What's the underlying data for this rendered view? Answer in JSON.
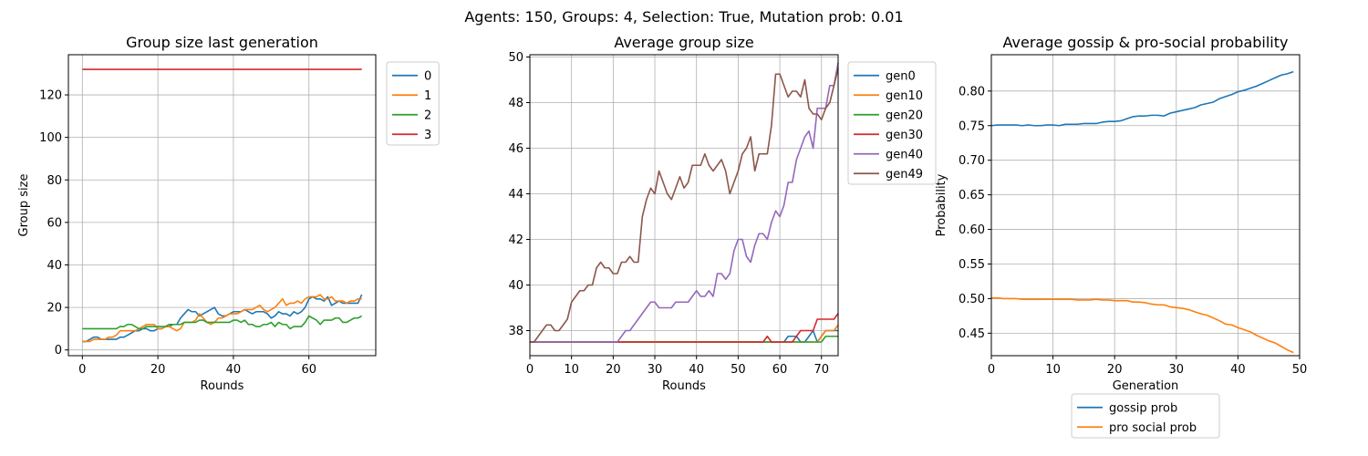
{
  "suptitle": "Agents: 150, Groups: 4, Selection: True, Mutation prob: 0.01",
  "chart_data": [
    {
      "type": "line",
      "title": "Group size last generation",
      "xlabel": "Rounds",
      "ylabel": "Group size",
      "xlim": [
        -3.7,
        77.7
      ],
      "ylim": [
        -2.7,
        138.9
      ],
      "xticks": [
        0,
        20,
        40,
        60
      ],
      "yticks": [
        0,
        20,
        40,
        60,
        80,
        100,
        120
      ],
      "grid": true,
      "legend_position": "outside-upper-right",
      "x_start": 0,
      "series": [
        {
          "name": "0",
          "color": "#1f77b4",
          "values": [
            4,
            4,
            5,
            6,
            6,
            5,
            5,
            5,
            5,
            5,
            6,
            6,
            7,
            8,
            9,
            9,
            10,
            10,
            9,
            9,
            10,
            10,
            11,
            11,
            12,
            12,
            15,
            17,
            19,
            18,
            18,
            16,
            17,
            18,
            19,
            20,
            17,
            16,
            16,
            17,
            18,
            18,
            18,
            19,
            18,
            17,
            18,
            18,
            18,
            17,
            15,
            16,
            18,
            17,
            17,
            16,
            18,
            17,
            18,
            20,
            24,
            25,
            24,
            24,
            23,
            25,
            21,
            22,
            23,
            22,
            22,
            22,
            22,
            22,
            26
          ]
        },
        {
          "name": "1",
          "color": "#ff7f0e",
          "values": [
            4,
            4,
            4,
            5,
            5,
            5,
            5,
            6,
            6,
            7,
            9,
            9,
            9,
            9,
            9,
            10,
            11,
            12,
            12,
            12,
            10,
            10,
            11,
            11,
            10,
            9,
            10,
            13,
            13,
            13,
            14,
            17,
            15,
            13,
            12,
            13,
            15,
            15,
            16,
            17,
            17,
            17,
            18,
            19,
            19,
            19,
            20,
            21,
            19,
            18,
            19,
            20,
            22,
            24,
            21,
            22,
            22,
            23,
            22,
            24,
            25,
            25,
            25,
            26,
            24,
            24,
            25,
            23,
            23,
            23,
            22,
            23,
            23,
            24,
            24
          ]
        },
        {
          "name": "2",
          "color": "#2ca02c",
          "values": [
            10,
            10,
            10,
            10,
            10,
            10,
            10,
            10,
            10,
            10,
            11,
            11,
            12,
            12,
            11,
            10,
            10,
            11,
            11,
            11,
            11,
            11,
            11,
            12,
            12,
            12,
            12,
            13,
            13,
            13,
            13,
            14,
            14,
            13,
            13,
            13,
            13,
            13,
            13,
            13,
            14,
            14,
            13,
            14,
            12,
            12,
            11,
            11,
            12,
            12,
            13,
            11,
            13,
            12,
            12,
            10,
            11,
            11,
            11,
            13,
            16,
            15,
            14,
            12,
            14,
            14,
            14,
            15,
            15,
            13,
            13,
            14,
            15,
            15,
            16
          ]
        },
        {
          "name": "3",
          "color": "#d62728",
          "values": [
            132,
            132,
            132,
            132,
            132,
            132,
            132,
            132,
            132,
            132,
            132,
            132,
            132,
            132,
            132,
            132,
            132,
            132,
            132,
            132,
            132,
            132,
            132,
            132,
            132,
            132,
            132,
            132,
            132,
            132,
            132,
            132,
            132,
            132,
            132,
            132,
            132,
            132,
            132,
            132,
            132,
            132,
            132,
            132,
            132,
            132,
            132,
            132,
            132,
            132,
            132,
            132,
            132,
            132,
            132,
            132,
            132,
            132,
            132,
            132,
            132,
            132,
            132,
            132,
            132,
            132,
            132,
            132,
            132,
            132,
            132,
            132,
            132,
            132,
            132
          ]
        }
      ]
    },
    {
      "type": "line",
      "title": "Average group size",
      "xlabel": "Rounds",
      "ylabel": "",
      "xlim": [
        0,
        74
      ],
      "ylim": [
        36.9,
        50.1
      ],
      "xticks": [
        0,
        10,
        20,
        30,
        40,
        50,
        60,
        70
      ],
      "yticks": [
        38,
        40,
        42,
        44,
        46,
        48,
        50
      ],
      "grid": true,
      "legend_position": "outside-upper-right",
      "x_start": 0,
      "series": [
        {
          "name": "gen0",
          "color": "#1f77b4",
          "values": [
            37.5,
            37.5,
            37.5,
            37.5,
            37.5,
            37.5,
            37.5,
            37.5,
            37.5,
            37.5,
            37.5,
            37.5,
            37.5,
            37.5,
            37.5,
            37.5,
            37.5,
            37.5,
            37.5,
            37.5,
            37.5,
            37.5,
            37.5,
            37.5,
            37.5,
            37.5,
            37.5,
            37.5,
            37.5,
            37.5,
            37.5,
            37.5,
            37.5,
            37.5,
            37.5,
            37.5,
            37.5,
            37.5,
            37.5,
            37.5,
            37.5,
            37.5,
            37.5,
            37.5,
            37.5,
            37.5,
            37.5,
            37.5,
            37.5,
            37.5,
            37.5,
            37.5,
            37.5,
            37.5,
            37.5,
            37.5,
            37.5,
            37.5,
            37.5,
            37.5,
            37.5,
            37.5,
            37.75,
            37.75,
            37.75,
            37.5,
            37.5,
            37.75,
            38,
            37.5,
            37.75,
            38,
            38,
            38,
            38
          ]
        },
        {
          "name": "gen10",
          "color": "#ff7f0e",
          "values": [
            37.5,
            37.5,
            37.5,
            37.5,
            37.5,
            37.5,
            37.5,
            37.5,
            37.5,
            37.5,
            37.5,
            37.5,
            37.5,
            37.5,
            37.5,
            37.5,
            37.5,
            37.5,
            37.5,
            37.5,
            37.5,
            37.5,
            37.5,
            37.5,
            37.5,
            37.5,
            37.5,
            37.5,
            37.5,
            37.5,
            37.5,
            37.5,
            37.5,
            37.5,
            37.5,
            37.5,
            37.5,
            37.5,
            37.5,
            37.5,
            37.5,
            37.5,
            37.5,
            37.5,
            37.5,
            37.5,
            37.5,
            37.5,
            37.5,
            37.5,
            37.5,
            37.5,
            37.5,
            37.5,
            37.5,
            37.5,
            37.5,
            37.5,
            37.5,
            37.5,
            37.5,
            37.5,
            37.5,
            37.5,
            37.5,
            37.5,
            37.5,
            37.5,
            37.5,
            37.5,
            37.75,
            38,
            38,
            38,
            38.25
          ]
        },
        {
          "name": "gen20",
          "color": "#2ca02c",
          "values": [
            37.5,
            37.5,
            37.5,
            37.5,
            37.5,
            37.5,
            37.5,
            37.5,
            37.5,
            37.5,
            37.5,
            37.5,
            37.5,
            37.5,
            37.5,
            37.5,
            37.5,
            37.5,
            37.5,
            37.5,
            37.5,
            37.5,
            37.5,
            37.5,
            37.5,
            37.5,
            37.5,
            37.5,
            37.5,
            37.5,
            37.5,
            37.5,
            37.5,
            37.5,
            37.5,
            37.5,
            37.5,
            37.5,
            37.5,
            37.5,
            37.5,
            37.5,
            37.5,
            37.5,
            37.5,
            37.5,
            37.5,
            37.5,
            37.5,
            37.5,
            37.5,
            37.5,
            37.5,
            37.5,
            37.5,
            37.5,
            37.5,
            37.5,
            37.5,
            37.5,
            37.5,
            37.5,
            37.5,
            37.5,
            37.5,
            37.5,
            37.5,
            37.5,
            37.5,
            37.5,
            37.5,
            37.75,
            37.75,
            37.75,
            37.75
          ]
        },
        {
          "name": "gen30",
          "color": "#d62728",
          "values": [
            37.5,
            37.5,
            37.5,
            37.5,
            37.5,
            37.5,
            37.5,
            37.5,
            37.5,
            37.5,
            37.5,
            37.5,
            37.5,
            37.5,
            37.5,
            37.5,
            37.5,
            37.5,
            37.5,
            37.5,
            37.5,
            37.5,
            37.5,
            37.5,
            37.5,
            37.5,
            37.5,
            37.5,
            37.5,
            37.5,
            37.5,
            37.5,
            37.5,
            37.5,
            37.5,
            37.5,
            37.5,
            37.5,
            37.5,
            37.5,
            37.5,
            37.5,
            37.5,
            37.5,
            37.5,
            37.5,
            37.5,
            37.5,
            37.5,
            37.5,
            37.5,
            37.5,
            37.5,
            37.5,
            37.5,
            37.5,
            37.5,
            37.75,
            37.5,
            37.5,
            37.5,
            37.5,
            37.5,
            37.5,
            37.75,
            38,
            38,
            38,
            38,
            38.5,
            38.5,
            38.5,
            38.5,
            38.5,
            38.75
          ]
        },
        {
          "name": "gen40",
          "color": "#9467bd",
          "values": [
            37.5,
            37.5,
            37.5,
            37.5,
            37.5,
            37.5,
            37.5,
            37.5,
            37.5,
            37.5,
            37.5,
            37.5,
            37.5,
            37.5,
            37.5,
            37.5,
            37.5,
            37.5,
            37.5,
            37.5,
            37.5,
            37.5,
            37.75,
            38,
            38,
            38.25,
            38.5,
            38.75,
            39,
            39.25,
            39.25,
            39,
            39,
            39,
            39,
            39.25,
            39.25,
            39.25,
            39.25,
            39.5,
            39.75,
            39.5,
            39.5,
            39.75,
            39.5,
            40.5,
            40.5,
            40.25,
            40.5,
            41.5,
            42,
            42,
            41.25,
            41,
            41.75,
            42.25,
            42.25,
            42,
            42.75,
            43.25,
            43,
            43.5,
            44.5,
            44.5,
            45.5,
            46,
            46.5,
            46.75,
            46,
            47.75,
            47.75,
            47.75,
            48.75,
            48.75,
            49.75
          ]
        },
        {
          "name": "gen49",
          "color": "#8c564b",
          "values": [
            37.5,
            37.5,
            37.75,
            38,
            38.25,
            38.25,
            38,
            38,
            38.25,
            38.5,
            39.25,
            39.5,
            39.75,
            39.75,
            40,
            40,
            40.75,
            41,
            40.75,
            40.75,
            40.5,
            40.5,
            41,
            41,
            41.25,
            41,
            41,
            43,
            43.75,
            44.25,
            44,
            45,
            44.5,
            44,
            43.75,
            44.25,
            44.75,
            44.25,
            44.5,
            45.25,
            45.25,
            45.25,
            45.75,
            45.25,
            45,
            45.25,
            45.5,
            45,
            44,
            44.5,
            45,
            45.75,
            46,
            46.5,
            45,
            45.75,
            45.75,
            45.75,
            47,
            49.25,
            49.25,
            48.75,
            48.25,
            48.5,
            48.5,
            48.25,
            49,
            47.75,
            47.5,
            47.5,
            47.25,
            47.75,
            48,
            48.75,
            49.5
          ]
        }
      ]
    },
    {
      "type": "line",
      "title": "Average gossip & pro-social probability",
      "xlabel": "Generation",
      "ylabel": "Probability",
      "xlim": [
        0,
        50
      ],
      "ylim": [
        0.4175,
        0.8525
      ],
      "xticks": [
        0,
        10,
        20,
        30,
        40,
        50
      ],
      "yticks": [
        0.45,
        0.5,
        0.55,
        0.6,
        0.65,
        0.7,
        0.75,
        0.8
      ],
      "ytick_labels": [
        "0.45",
        "0.50",
        "0.55",
        "0.60",
        "0.65",
        "0.70",
        "0.75",
        "0.80"
      ],
      "grid": true,
      "legend_position": "below",
      "x_start": 0,
      "series": [
        {
          "name": "gossip prob",
          "color": "#1f77b4",
          "values": [
            0.75,
            0.751,
            0.751,
            0.751,
            0.751,
            0.75,
            0.751,
            0.75,
            0.75,
            0.751,
            0.751,
            0.75,
            0.752,
            0.752,
            0.752,
            0.753,
            0.753,
            0.753,
            0.755,
            0.756,
            0.756,
            0.757,
            0.76,
            0.763,
            0.764,
            0.764,
            0.765,
            0.765,
            0.764,
            0.768,
            0.77,
            0.772,
            0.774,
            0.776,
            0.78,
            0.782,
            0.784,
            0.789,
            0.792,
            0.795,
            0.799,
            0.801,
            0.804,
            0.807,
            0.811,
            0.815,
            0.819,
            0.823,
            0.825,
            0.828
          ]
        },
        {
          "name": "pro social prob",
          "color": "#ff7f0e",
          "values": [
            0.501,
            0.501,
            0.5,
            0.5,
            0.5,
            0.499,
            0.499,
            0.499,
            0.499,
            0.499,
            0.499,
            0.499,
            0.499,
            0.499,
            0.498,
            0.498,
            0.498,
            0.499,
            0.498,
            0.498,
            0.497,
            0.497,
            0.497,
            0.495,
            0.495,
            0.494,
            0.492,
            0.491,
            0.491,
            0.488,
            0.487,
            0.486,
            0.484,
            0.481,
            0.478,
            0.476,
            0.472,
            0.468,
            0.463,
            0.462,
            0.458,
            0.455,
            0.452,
            0.447,
            0.443,
            0.439,
            0.436,
            0.431,
            0.426,
            0.422
          ]
        }
      ]
    }
  ]
}
